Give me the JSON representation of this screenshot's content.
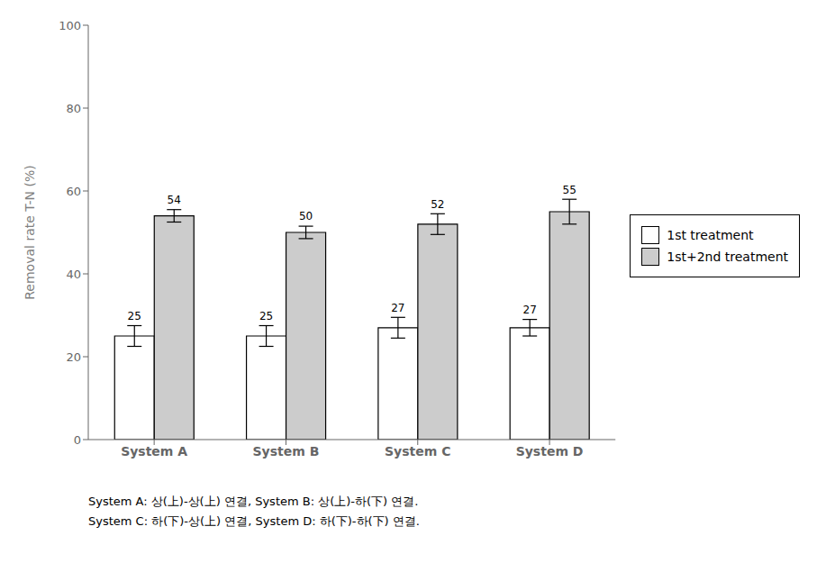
{
  "chart_data": {
    "type": "bar",
    "categories": [
      "System A",
      "System B",
      "System C",
      "System D"
    ],
    "series": [
      {
        "name": "1st treatment",
        "color": "#ffffff",
        "values": [
          25,
          25,
          27,
          27
        ],
        "errors": [
          2.5,
          2.5,
          2.5,
          2.0
        ]
      },
      {
        "name": "1st+2nd treatment",
        "color": "#cccccc",
        "values": [
          54,
          50,
          52,
          55
        ],
        "errors": [
          1.5,
          1.5,
          2.5,
          3.0
        ]
      }
    ],
    "ylabel": "Removal rate T-N (%)",
    "ylim": [
      0,
      100
    ],
    "yticks": [
      0,
      20,
      40,
      60,
      80,
      100
    ],
    "data_labels": true,
    "legend": "right",
    "grid": false,
    "annotations": [
      "System A: 상(上)-상(上) 연결, System B: 상(上)-하(下) 연결.",
      "System C: 하(下)-상(上) 연결, System D: 하(下)-하(下) 연결."
    ]
  }
}
